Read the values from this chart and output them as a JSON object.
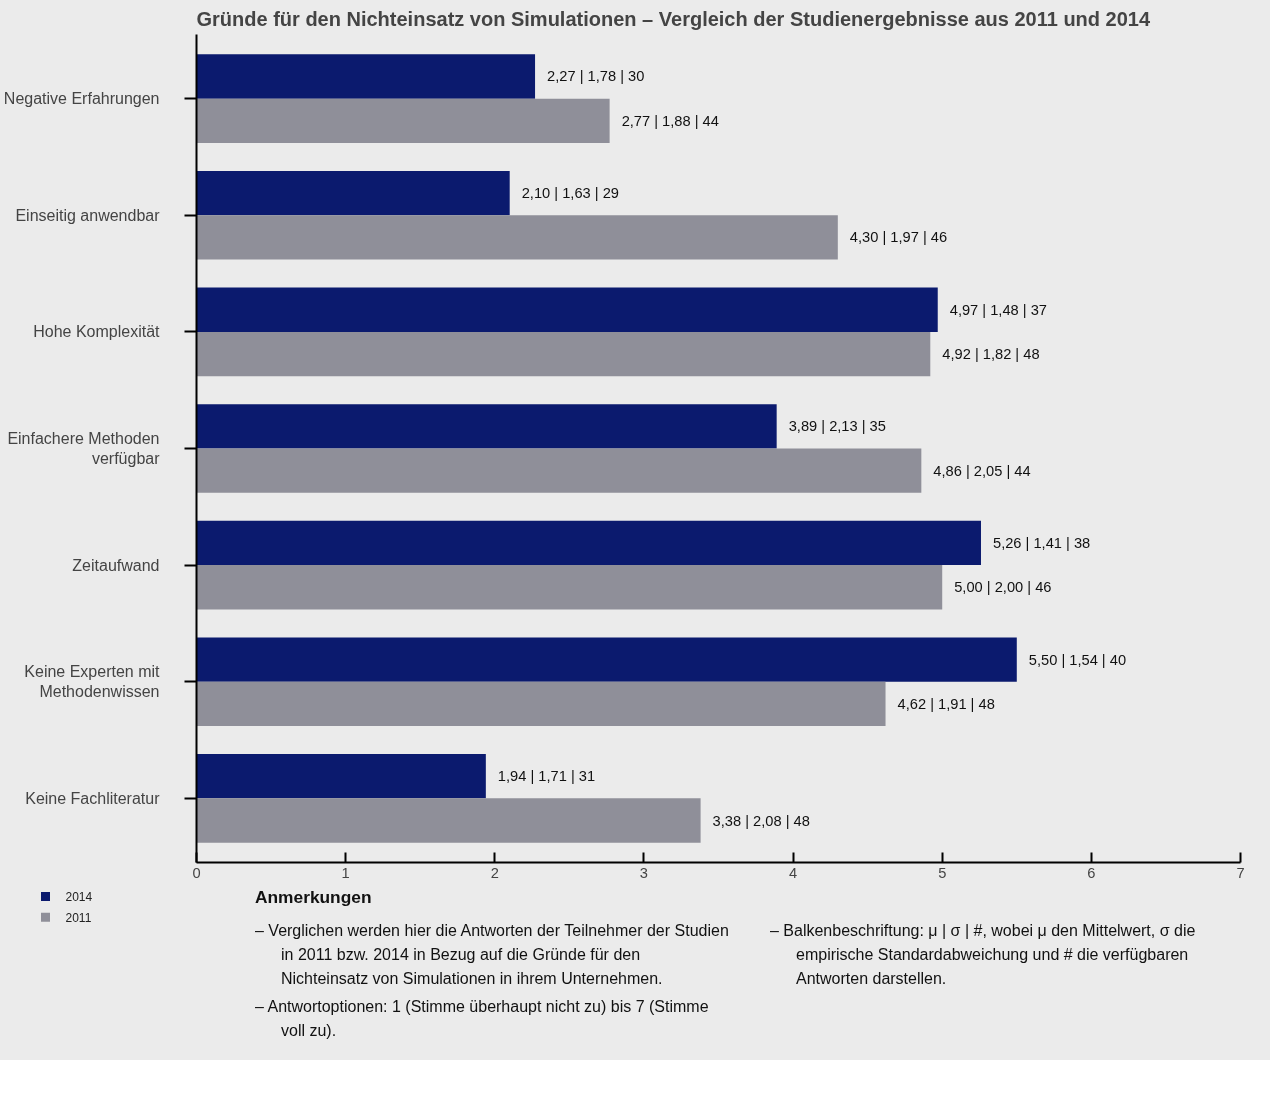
{
  "chart_data": {
    "type": "bar",
    "orientation": "horizontal",
    "title": "Gründe für den Nichteinsatz von Simulationen – Vergleich der Studienergebnisse aus 2011 und 2014",
    "categories": [
      "Negative Erfahrungen",
      "Einseitig anwendbar",
      "Hohe Komplexität",
      "Einfachere Methoden verfügbar",
      "Zeitaufwand",
      "Keine Experten mit Methodenwissen",
      "Keine Fachliteratur"
    ],
    "series": [
      {
        "name": "2014",
        "color": "#0b1a6e",
        "values": [
          2.27,
          2.1,
          4.97,
          3.89,
          5.26,
          5.5,
          1.94
        ],
        "value_labels": [
          "2,27 | 1,78 | 30",
          "2,10 | 1,63 | 29",
          "4,97 | 1,48 | 37",
          "3,89 | 2,13 | 35",
          "5,26 | 1,41 | 38",
          "5,50 | 1,54 | 40",
          "1,94 | 1,71 | 31"
        ]
      },
      {
        "name": "2011",
        "color": "#8f8f99",
        "values": [
          2.77,
          4.3,
          4.92,
          4.86,
          5.0,
          4.62,
          3.38
        ],
        "value_labels": [
          "2,77 | 1,88 | 44",
          "4,30 | 1,97 | 46",
          "4,92 | 1,82 | 48",
          "4,86 | 2,05 | 44",
          "5,00 | 2,00 | 46",
          "4,62 | 1,91 | 48",
          "3,38 | 2,08 | 48"
        ]
      }
    ],
    "xlim": [
      0,
      7
    ],
    "xticks": [
      0,
      1,
      2,
      3,
      4,
      5,
      6,
      7
    ],
    "grid": false,
    "legend": "bottom left",
    "annotations": [
      "Anmerkungen",
      "– Verglichen werden hier die Antworten der Teilnehmer der Studien in 2011 bzw. 2014 in Bezug auf die Gründe für den Nichteinsatz von Simulationen in ihrem Unternehmen.",
      "– Antwortoptionen: 1 (Stimme überhaupt nicht zu) bis 7 (Stimme voll zu).",
      "– Balkenbeschriftung: μ | σ | #, wobei μ den Mittelwert, σ die empirische Standardabweichung und # die verfügbaren Antworten darstellen."
    ]
  }
}
